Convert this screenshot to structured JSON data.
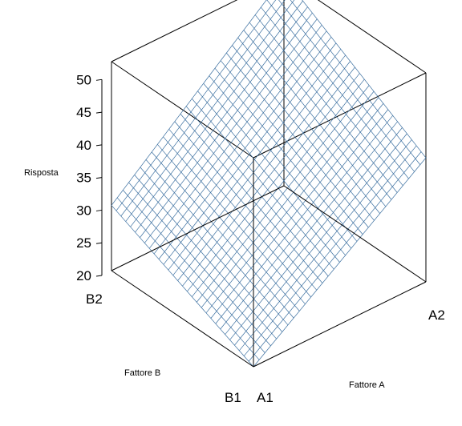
{
  "chart_data": {
    "type": "surface3d",
    "title": "",
    "zlabel": "Risposta",
    "xlabel": "Fattore A",
    "ylabel": "Fattore B",
    "x_ticks": [
      "A1",
      "A2"
    ],
    "y_ticks": [
      "B1",
      "B2"
    ],
    "z_ticks": [
      20,
      25,
      30,
      35,
      40,
      45,
      50
    ],
    "zlim": [
      20,
      52
    ],
    "surface": {
      "A1_B1": 20,
      "A2_B1": 39,
      "A1_B2": 30,
      "A2_B2": 52
    },
    "grid_lines_per_direction": 30,
    "mesh_color": "#3B6FA0",
    "box_color": "#000000"
  }
}
